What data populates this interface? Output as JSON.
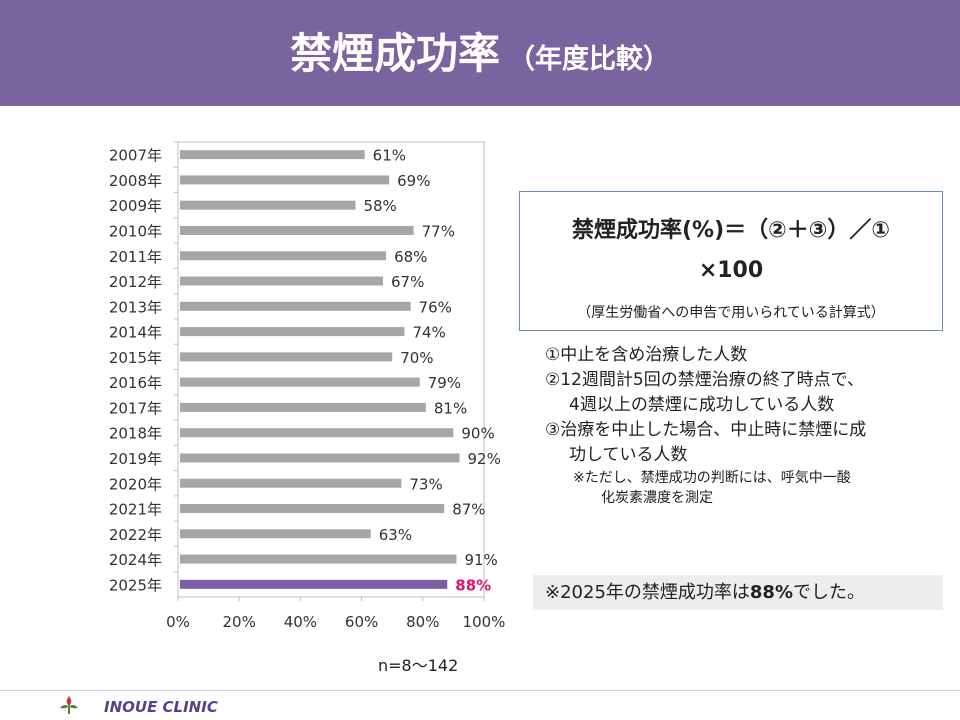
{
  "title": {
    "main": "禁煙成功率",
    "sub": "（年度比較）"
  },
  "chart_data": {
    "type": "bar",
    "orientation": "horizontal",
    "categories": [
      "2007年",
      "2008年",
      "2009年",
      "2010年",
      "2011年",
      "2012年",
      "2013年",
      "2014年",
      "2015年",
      "2016年",
      "2017年",
      "2018年",
      "2019年",
      "2020年",
      "2021年",
      "2022年",
      "2024年",
      "2025年"
    ],
    "values": [
      61,
      69,
      58,
      77,
      68,
      67,
      76,
      74,
      70,
      79,
      81,
      90,
      92,
      73,
      87,
      63,
      91,
      88
    ],
    "value_labels": [
      "61%",
      "69%",
      "58%",
      "77%",
      "68%",
      "67%",
      "76%",
      "74%",
      "70%",
      "79%",
      "81%",
      "90%",
      "92%",
      "73%",
      "87%",
      "63%",
      "91%",
      "88%"
    ],
    "xlim": [
      0,
      100
    ],
    "x_ticks": [
      "0%",
      "20%",
      "40%",
      "60%",
      "80%",
      "100%"
    ],
    "grid": false,
    "bar_color": "#a6a6a6",
    "highlight": {
      "category": "2025年",
      "bar_color": "#7a5fa3",
      "label_color": "#e0106f"
    }
  },
  "formula": {
    "line1": "禁煙成功率(%)＝（②＋③）／①",
    "line2": "×100",
    "note": "（厚生労働省への申告で用いられている計算式）"
  },
  "notes": [
    "①中止を含め治療した人数",
    "②12週間計5回の禁煙治療の終了時点で、",
    "4週以上の禁煙に成功している人数",
    "③治療を中止した場合、中止時に禁煙に成",
    "功している人数",
    "※ただし、禁煙成功の判断には、呼気中一酸",
    "化炭素濃度を測定"
  ],
  "summary": {
    "prefix": "※2025年の禁煙成功率は",
    "value": "88%",
    "suffix": "でした。"
  },
  "n_label": "n=8～142",
  "footer": {
    "clinic_name": "INOUE CLINIC"
  },
  "colors": {
    "header": "#7a64a0",
    "logo": "#5b3f8c"
  }
}
